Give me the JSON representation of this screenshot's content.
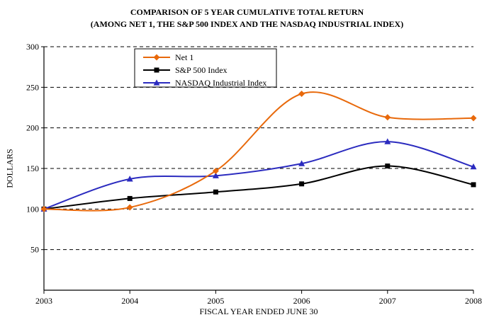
{
  "chart_data": {
    "type": "line",
    "title": "COMPARISON OF 5 YEAR CUMULATIVE TOTAL RETURN (AMONG NET 1, THE S&P 500 INDEX AND THE NASDAQ INDUSTRIAL INDEX)",
    "title_line1": "COMPARISON OF 5 YEAR CUMULATIVE TOTAL RETURN",
    "title_line2": "(AMONG NET 1, THE S&P 500 INDEX AND THE NASDAQ INDUSTRIAL INDEX)",
    "xlabel": "FISCAL YEAR ENDED JUNE 30",
    "ylabel": "DOLLARS",
    "categories": [
      "2003",
      "2004",
      "2005",
      "2006",
      "2007",
      "2008"
    ],
    "ylim": [
      0,
      300
    ],
    "yticks": [
      50,
      100,
      150,
      200,
      250,
      300
    ],
    "grid": "dashed-horizontal",
    "legend_position": "top-center-inside",
    "series": [
      {
        "name": "Net 1",
        "color": "#E8690B",
        "marker": "diamond",
        "smooth": true,
        "values": [
          100,
          102,
          147,
          242,
          213,
          212
        ]
      },
      {
        "name": "S&P 500 Index",
        "color": "#000000",
        "marker": "square",
        "smooth": true,
        "values": [
          100,
          113,
          121,
          131,
          153,
          130
        ]
      },
      {
        "name": "NASDAQ Industrial Index",
        "color": "#2B2BBF",
        "marker": "triangle",
        "smooth": true,
        "values": [
          100,
          137,
          141,
          156,
          183,
          152
        ]
      }
    ]
  }
}
